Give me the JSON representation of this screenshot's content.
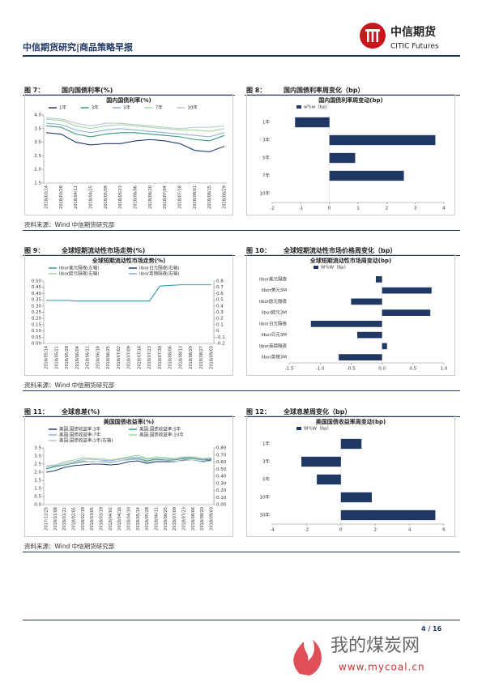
{
  "header": {
    "title": "中信期货研究|商品策略早报",
    "logo_name": "中信期货",
    "logo_en": "CITIC Futures"
  },
  "figures": [
    {
      "label": "图 7：",
      "caption": "国内国债利率(%)",
      "source": "资料来源：Wind  中信期货研究部"
    },
    {
      "label": "图 8：",
      "caption": "国内国债利率周变化（bp）",
      "source": ""
    },
    {
      "label": "图 9：",
      "caption": "全球短期流动性市场走势(%)",
      "source": "资料来源：Wind  中信期货研究部"
    },
    {
      "label": "图 10：",
      "caption": "全球短期流动性市场价格周变化（bp）",
      "source": ""
    },
    {
      "label": "图 11：",
      "caption": "全球息差(%)",
      "source": "资料来源：Wind  中信期货研究部"
    },
    {
      "label": "图 12：",
      "caption": "全球息差周变化（bp）",
      "source": ""
    }
  ],
  "chart_data": [
    {
      "type": "line",
      "title": "国内国债利率(%)",
      "categories": [
        "2018/03/14",
        "2018/03/28",
        "2018/04/11",
        "2018/04/25",
        "2018/05/09",
        "2018/05/23",
        "2018/06/06",
        "2018/06/20",
        "2018/07/04",
        "2018/07/18",
        "2018/08/01",
        "2018/08/15",
        "2018/08/29"
      ],
      "series": [
        {
          "name": "1年",
          "color": "#1f3b73",
          "values": [
            3.35,
            3.3,
            3.0,
            2.9,
            2.95,
            2.95,
            3.05,
            3.1,
            3.05,
            2.95,
            2.7,
            2.65,
            2.85
          ]
        },
        {
          "name": "3年",
          "color": "#3a9a7a",
          "values": [
            3.6,
            3.55,
            3.3,
            3.2,
            3.3,
            3.35,
            3.35,
            3.3,
            3.25,
            3.2,
            3.1,
            3.05,
            3.25
          ]
        },
        {
          "name": "5年",
          "color": "#8fb0d8",
          "values": [
            3.7,
            3.65,
            3.45,
            3.35,
            3.45,
            3.5,
            3.45,
            3.4,
            3.35,
            3.3,
            3.25,
            3.2,
            3.35
          ]
        },
        {
          "name": "7年",
          "color": "#a8d5a0",
          "values": [
            3.85,
            3.8,
            3.6,
            3.5,
            3.6,
            3.65,
            3.6,
            3.55,
            3.5,
            3.45,
            3.45,
            3.4,
            3.5
          ]
        },
        {
          "name": "10年",
          "color": "#b8c8d8",
          "values": [
            3.9,
            3.85,
            3.7,
            3.6,
            3.7,
            3.7,
            3.65,
            3.6,
            3.55,
            3.5,
            3.55,
            3.55,
            3.6
          ]
        }
      ],
      "ylim": [
        1.5,
        4
      ],
      "yticks": [
        1.5,
        {
          "value": 2,
          "label": "2.0"
        },
        2.5,
        {
          "value": 3,
          "label": "3.0"
        },
        3.5,
        {
          "value": 4,
          "label": "4.0"
        }
      ]
    },
    {
      "type": "barh",
      "title": "国内国债利率周变动(bp)",
      "legend": "w%w（bp）",
      "color": "#1f3864",
      "categories": [
        "1年",
        "3年",
        "5年",
        "7年",
        "10年"
      ],
      "values": [
        -1.2,
        3.7,
        0.9,
        2.6,
        0
      ],
      "xlim": [
        -2,
        4
      ],
      "xticks": [
        -2,
        -1,
        0,
        1,
        2,
        3,
        4
      ]
    },
    {
      "type": "line",
      "title": "全球短期流动性市场走势(%)",
      "categories": [
        "2018/05/14",
        "2018/05/21",
        "2018/05/28",
        "2018/06/04",
        "2018/06/11",
        "2018/06/18",
        "2018/06/25",
        "2018/07/02",
        "2018/07/09",
        "2018/07/16",
        "2018/07/23",
        "2018/07/30",
        "2018/08/06",
        "2018/08/13",
        "2018/08/20",
        "2018/08/27",
        "2018/09/03"
      ],
      "series": [
        {
          "name": "libor美元隔夜(左轴)",
          "color": "#2f9bb0",
          "values": [
            0.345,
            0.345,
            0.345,
            0.34,
            0.34,
            0.34,
            0.34,
            0.34,
            0.34,
            0.34,
            0.34,
            0.46,
            0.465,
            0.47,
            0.47,
            0.47,
            0.47
          ]
        },
        {
          "name": "libor日元隔夜(右轴)",
          "color": "#1f3b73",
          "axis": "y2",
          "values": [
            null,
            null,
            null,
            null,
            null,
            null,
            null,
            null,
            null,
            null,
            null,
            null,
            null,
            null,
            null,
            null,
            null
          ]
        },
        {
          "name": "libor欧元隔夜(右轴)",
          "color": "#a8d5a0",
          "axis": "y2",
          "values": [
            null,
            null,
            null,
            null,
            null,
            null,
            null,
            null,
            null,
            null,
            null,
            null,
            null,
            null,
            null,
            null,
            null
          ]
        },
        {
          "name": "libor英镑隔夜(右轴)",
          "color": "#8fb0d8",
          "axis": "y2",
          "values": [
            null,
            null,
            null,
            null,
            null,
            null,
            null,
            null,
            null,
            null,
            null,
            null,
            null,
            null,
            null,
            null,
            null
          ]
        }
      ],
      "ylim": [
        0,
        0.5
      ],
      "yticks": [
        {
          "value": 0,
          "label": "0.00"
        },
        0.05,
        {
          "value": 0.1,
          "label": "0.10"
        },
        0.15,
        {
          "value": 0.2,
          "label": "0.20"
        },
        0.25,
        {
          "value": 0.3,
          "label": "0.30"
        },
        0.35,
        {
          "value": 0.4,
          "label": "0.40"
        },
        0.45,
        {
          "value": 0.5,
          "label": "0.50"
        }
      ],
      "y2lim": [
        -0.2,
        0.8
      ],
      "y2ticks": [
        -0.2,
        -0.1,
        0,
        0.1,
        0.2,
        0.3,
        0.4,
        0.5,
        0.6,
        0.7,
        0.8
      ]
    },
    {
      "type": "barh",
      "title": "全球短期流动性市场周变动(bp)",
      "legend": "W%W（bp）",
      "color": "#1f3864",
      "categories": [
        "libor美元隔夜",
        "libor美元3M",
        "libor欧元隔夜",
        "libor欧元3M",
        "libor日元隔夜",
        "libor日元3M",
        "libor英镑隔夜",
        "libor英镑3M"
      ],
      "values": [
        -0.1,
        0.8,
        -0.5,
        0.78,
        -1.15,
        -0.4,
        0.08,
        -0.7
      ],
      "xlim": [
        -1.5,
        1
      ],
      "xticks": [
        -1.5,
        {
          "value": -1,
          "label": "-1.0"
        },
        -0.5,
        {
          "value": 0,
          "label": "0.0"
        },
        0.5,
        {
          "value": 1,
          "label": "1.0"
        }
      ]
    },
    {
      "type": "line",
      "title": "美国国债收益率(%)",
      "categories": [
        "2017/12/25",
        "2018/01/08",
        "2018/01/22",
        "2018/02/05",
        "2018/02/19",
        "2018/03/05",
        "2018/03/19",
        "2018/04/02",
        "2018/04/16",
        "2018/04/30",
        "2018/05/14",
        "2018/05/28",
        "2018/06/11",
        "2018/06/25",
        "2018/07/09",
        "2018/07/23",
        "2018/08/06",
        "2018/08/20",
        "2018/09/03"
      ],
      "series": [
        {
          "name": "美国:国债收益率:3年",
          "color": "#1f3b73",
          "values": [
            2.0,
            2.1,
            2.3,
            2.4,
            2.45,
            2.5,
            2.5,
            2.45,
            2.5,
            2.65,
            2.7,
            2.55,
            2.65,
            2.65,
            2.65,
            2.75,
            2.75,
            2.65,
            2.75
          ]
        },
        {
          "name": "美国:国债收益率:5年",
          "color": "#3a9a7a",
          "values": [
            2.2,
            2.35,
            2.45,
            2.55,
            2.65,
            2.65,
            2.65,
            2.6,
            2.7,
            2.8,
            2.85,
            2.7,
            2.8,
            2.75,
            2.75,
            2.85,
            2.85,
            2.75,
            2.8
          ]
        },
        {
          "name": "美国:国债收益率:7年",
          "color": "#8fb0d8",
          "values": [
            2.3,
            2.4,
            2.55,
            2.65,
            2.8,
            2.8,
            2.75,
            2.7,
            2.8,
            2.9,
            2.95,
            2.8,
            2.85,
            2.85,
            2.8,
            2.9,
            2.9,
            2.8,
            2.85
          ]
        },
        {
          "name": "美国:国债收益率:10年",
          "color": "#a8d5a0",
          "values": [
            2.4,
            2.45,
            2.65,
            2.75,
            2.9,
            2.85,
            2.85,
            2.75,
            2.85,
            2.95,
            3.05,
            2.85,
            2.95,
            2.9,
            2.85,
            2.95,
            2.95,
            2.85,
            2.9
          ]
        },
        {
          "name": "美国:国债收益率:1年(右轴)",
          "color": "#c0c8d0",
          "axis": "y2",
          "values": [
            0.55,
            0.56,
            0.58,
            0.6,
            0.62,
            0.6,
            0.61,
            0.6,
            0.62,
            0.63,
            0.64,
            0.6,
            0.62,
            0.62,
            0.61,
            0.62,
            0.63,
            0.6,
            0.62
          ]
        }
      ],
      "ylim": [
        0,
        3.5
      ],
      "yticks": [
        {
          "value": 0,
          "label": "0.0"
        },
        0.5,
        {
          "value": 1,
          "label": "1.0"
        },
        1.5,
        {
          "value": 2,
          "label": "2.0"
        },
        2.5,
        {
          "value": 3,
          "label": "3.0"
        },
        3.5
      ],
      "y2lim": [
        0,
        0.8
      ],
      "y2ticks": [
        {
          "value": 0,
          "label": "0.00"
        },
        {
          "value": 0.1,
          "label": "0.10"
        },
        {
          "value": 0.2,
          "label": "0.20"
        },
        {
          "value": 0.3,
          "label": "0.30"
        },
        {
          "value": 0.4,
          "label": "0.40"
        },
        {
          "value": 0.5,
          "label": "0.50"
        },
        {
          "value": 0.6,
          "label": "0.60"
        },
        {
          "value": 0.7,
          "label": "0.70"
        },
        {
          "value": 0.8,
          "label": "0.80"
        }
      ]
    },
    {
      "type": "barh",
      "title": "美国国债收益率周变动(bp)",
      "legend": "W%W（bp）",
      "color": "#1f3864",
      "categories": [
        "1年",
        "3年",
        "5年",
        "10年",
        "30年"
      ],
      "values": [
        1.2,
        -2.3,
        -1.4,
        1.8,
        5.5
      ],
      "xlim": [
        -4,
        6
      ],
      "xticks": [
        -4,
        -2,
        0,
        2,
        4,
        6
      ]
    }
  ],
  "footer": {
    "page": "4 / 16",
    "watermark": "我的煤炭网",
    "watermark_url": "www.mycoal.cn"
  }
}
